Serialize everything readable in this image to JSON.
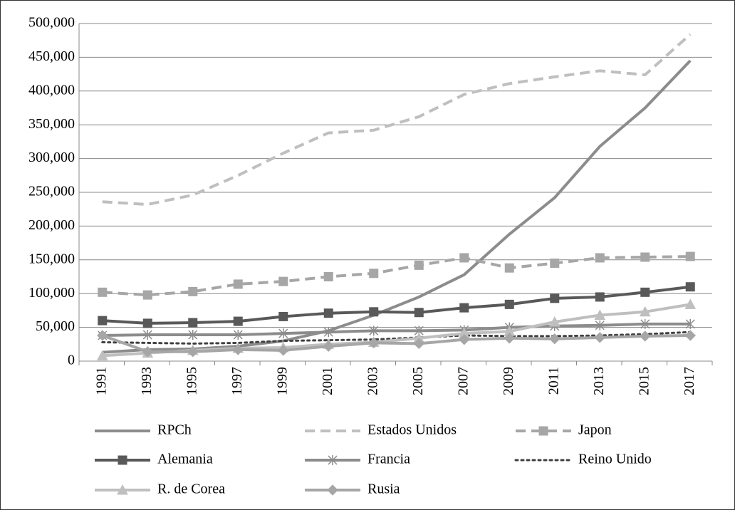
{
  "chart_data": {
    "type": "line",
    "categories": [
      "1991",
      "1993",
      "1995",
      "1997",
      "1999",
      "2001",
      "2003",
      "2005",
      "2007",
      "2009",
      "2011",
      "2013",
      "2015",
      "2017"
    ],
    "ylim": [
      0,
      500000
    ],
    "yticks": [
      0,
      {
        "value": 50000,
        "label": "50,000"
      },
      {
        "value": 100000,
        "label": "100,000"
      },
      {
        "value": 150000,
        "label": "150,000"
      },
      {
        "value": 200000,
        "label": "200,000"
      },
      {
        "value": 250000,
        "label": "250,000"
      },
      {
        "value": 300000,
        "label": "300,000"
      },
      {
        "value": 350000,
        "label": "350,000"
      },
      {
        "value": 400000,
        "label": "400,000"
      },
      {
        "value": 450000,
        "label": "450,000"
      },
      {
        "value": 500000,
        "label": "500,000"
      }
    ],
    "grid": true,
    "legend": "bottom",
    "series": [
      {
        "name": "RPCh",
        "color": "#8c8c8c",
        "dash": "solid",
        "marker": "none",
        "values": [
          13000,
          17000,
          18000,
          22000,
          30000,
          45000,
          68000,
          95000,
          128000,
          188000,
          242000,
          318000,
          375000,
          445000
        ]
      },
      {
        "name": "Estados Unidos",
        "color": "#bfbfbf",
        "dash": "dashed",
        "marker": "none",
        "values": [
          236000,
          232000,
          246000,
          275000,
          308000,
          338000,
          342000,
          362000,
          395000,
          411000,
          421000,
          430000,
          424000,
          484000
        ]
      },
      {
        "name": "Japon",
        "color": "#a6a6a6",
        "dash": "dashed",
        "marker": "square",
        "values": [
          102000,
          98000,
          103000,
          114000,
          118000,
          125000,
          130000,
          142000,
          153000,
          138000,
          145000,
          153000,
          154000,
          155000
        ]
      },
      {
        "name": "Alemania",
        "color": "#595959",
        "dash": "solid",
        "marker": "square",
        "values": [
          60000,
          56000,
          57000,
          59000,
          66000,
          71000,
          73000,
          72000,
          79000,
          84000,
          93000,
          95000,
          102000,
          110000
        ]
      },
      {
        "name": "Francia",
        "color": "#8c8c8c",
        "dash": "solid",
        "marker": "star",
        "values": [
          38000,
          39000,
          39000,
          39000,
          41000,
          43000,
          45000,
          45000,
          46000,
          50000,
          52000,
          53000,
          55000,
          55000
        ]
      },
      {
        "name": "Reino Unido",
        "color": "#404040",
        "dash": "dotted",
        "marker": "none",
        "values": [
          28000,
          27000,
          26000,
          27000,
          30000,
          31000,
          32000,
          35000,
          38000,
          37000,
          37000,
          38000,
          40000,
          43000
        ]
      },
      {
        "name": "R. de Corea",
        "color": "#bfbfbf",
        "dash": "solid",
        "marker": "triangle",
        "values": [
          8000,
          12000,
          16000,
          19000,
          20000,
          25000,
          28000,
          34000,
          41000,
          44000,
          58000,
          68000,
          73000,
          84000
        ]
      },
      {
        "name": "Rusia",
        "color": "#a6a6a6",
        "dash": "solid",
        "marker": "diamond",
        "values": [
          38000,
          14000,
          14000,
          17000,
          16000,
          22000,
          27000,
          26000,
          32000,
          34000,
          33000,
          35000,
          37000,
          38000
        ]
      }
    ]
  }
}
